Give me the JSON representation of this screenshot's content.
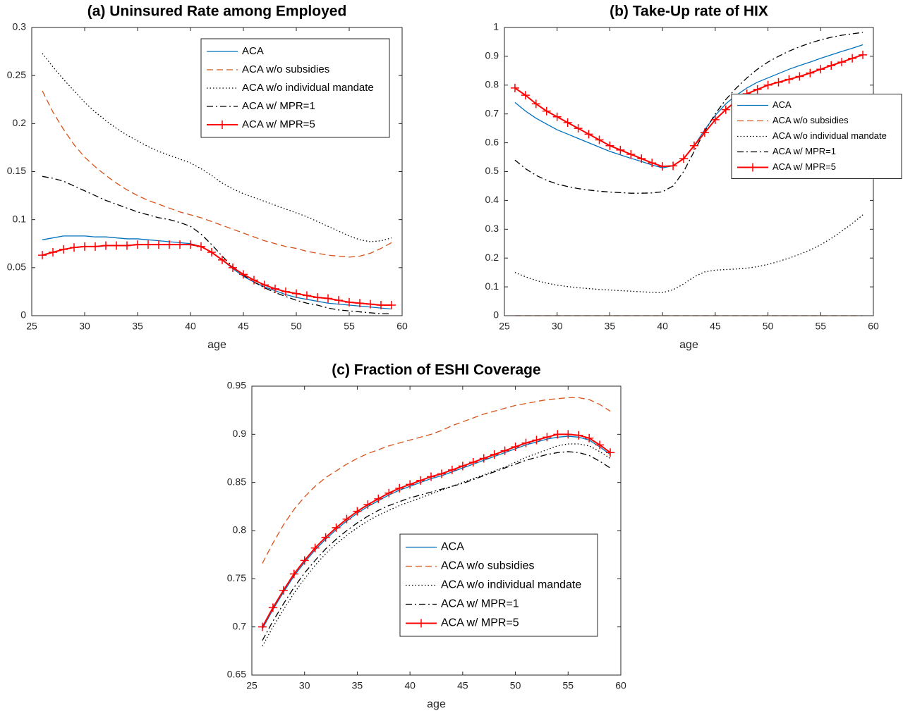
{
  "chart_data": [
    {
      "type": "line",
      "title": "(a) Uninsured Rate among Employed",
      "xlabel": "age",
      "legend": "northeast",
      "x": [
        26,
        27,
        28,
        29,
        30,
        31,
        32,
        33,
        34,
        35,
        36,
        37,
        38,
        39,
        40,
        41,
        42,
        43,
        44,
        45,
        46,
        47,
        48,
        49,
        50,
        51,
        52,
        53,
        54,
        55,
        56,
        57,
        58,
        59
      ],
      "xlim": [
        25,
        60
      ],
      "xticks": [
        25,
        30,
        35,
        40,
        45,
        50,
        55,
        60
      ],
      "ylim": [
        0,
        0.3
      ],
      "yticks": [
        0,
        0.05,
        0.1,
        0.15,
        0.2,
        0.25,
        0.3
      ],
      "series": [
        {
          "name": "ACA",
          "color": "#0072bd",
          "dash": "solid",
          "values": [
            0.079,
            0.081,
            0.083,
            0.083,
            0.083,
            0.082,
            0.082,
            0.081,
            0.08,
            0.08,
            0.079,
            0.078,
            0.077,
            0.076,
            0.075,
            0.072,
            0.066,
            0.058,
            0.049,
            0.041,
            0.035,
            0.03,
            0.026,
            0.022,
            0.019,
            0.017,
            0.015,
            0.013,
            0.012,
            0.011,
            0.01,
            0.009,
            0.008,
            0.007
          ]
        },
        {
          "name": "ACA w/o subsidies",
          "color": "#d95319",
          "dash": "dashed",
          "values": [
            0.234,
            0.212,
            0.194,
            0.178,
            0.165,
            0.155,
            0.146,
            0.138,
            0.131,
            0.125,
            0.12,
            0.116,
            0.112,
            0.108,
            0.105,
            0.102,
            0.098,
            0.094,
            0.09,
            0.086,
            0.082,
            0.078,
            0.075,
            0.072,
            0.07,
            0.067,
            0.065,
            0.063,
            0.062,
            0.061,
            0.062,
            0.065,
            0.07,
            0.076
          ]
        },
        {
          "name": "ACA w/o individual mandate",
          "color": "#000000",
          "dash": "dotted",
          "values": [
            0.273,
            0.259,
            0.246,
            0.234,
            0.222,
            0.212,
            0.203,
            0.195,
            0.188,
            0.182,
            0.176,
            0.171,
            0.167,
            0.163,
            0.159,
            0.153,
            0.146,
            0.138,
            0.132,
            0.127,
            0.123,
            0.119,
            0.115,
            0.111,
            0.107,
            0.103,
            0.098,
            0.093,
            0.088,
            0.083,
            0.079,
            0.077,
            0.078,
            0.081
          ]
        },
        {
          "name": "ACA w/ MPR=1",
          "color": "#000000",
          "dash": "dashdot",
          "values": [
            0.145,
            0.143,
            0.14,
            0.135,
            0.13,
            0.125,
            0.12,
            0.116,
            0.112,
            0.108,
            0.105,
            0.102,
            0.1,
            0.097,
            0.093,
            0.085,
            0.074,
            0.062,
            0.051,
            0.042,
            0.035,
            0.029,
            0.024,
            0.02,
            0.016,
            0.013,
            0.011,
            0.008,
            0.006,
            0.005,
            0.004,
            0.003,
            0.002,
            0.002
          ]
        },
        {
          "name": "ACA w/ MPR=5",
          "color": "#ff0000",
          "dash": "solid",
          "marker": "+",
          "values": [
            0.063,
            0.066,
            0.069,
            0.071,
            0.072,
            0.072,
            0.073,
            0.073,
            0.073,
            0.074,
            0.074,
            0.074,
            0.074,
            0.074,
            0.074,
            0.072,
            0.066,
            0.058,
            0.05,
            0.043,
            0.037,
            0.032,
            0.028,
            0.025,
            0.023,
            0.021,
            0.019,
            0.018,
            0.016,
            0.014,
            0.013,
            0.012,
            0.011,
            0.011
          ]
        }
      ]
    },
    {
      "type": "line",
      "title": "(b) Take-Up rate of HIX",
      "xlabel": "age",
      "legend": "east",
      "x": [
        26,
        27,
        28,
        29,
        30,
        31,
        32,
        33,
        34,
        35,
        36,
        37,
        38,
        39,
        40,
        41,
        42,
        43,
        44,
        45,
        46,
        47,
        48,
        49,
        50,
        51,
        52,
        53,
        54,
        55,
        56,
        57,
        58,
        59
      ],
      "xlim": [
        25,
        60
      ],
      "xticks": [
        25,
        30,
        35,
        40,
        45,
        50,
        55,
        60
      ],
      "ylim": [
        0,
        1
      ],
      "yticks": [
        0,
        0.1,
        0.2,
        0.3,
        0.4,
        0.5,
        0.6,
        0.7,
        0.8,
        0.9,
        1
      ],
      "series": [
        {
          "name": "ACA",
          "color": "#0072bd",
          "dash": "solid",
          "values": [
            0.74,
            0.71,
            0.685,
            0.665,
            0.645,
            0.63,
            0.615,
            0.6,
            0.585,
            0.57,
            0.558,
            0.546,
            0.535,
            0.523,
            0.513,
            0.52,
            0.545,
            0.59,
            0.645,
            0.695,
            0.735,
            0.765,
            0.79,
            0.81,
            0.825,
            0.84,
            0.855,
            0.868,
            0.88,
            0.893,
            0.905,
            0.917,
            0.928,
            0.94
          ]
        },
        {
          "name": "ACA w/o subsidies",
          "color": "#d95319",
          "dash": "dashed",
          "values": [
            0,
            0,
            0,
            0,
            0,
            0,
            0,
            0,
            0,
            0,
            0,
            0,
            0,
            0,
            0,
            0,
            0,
            0,
            0,
            0,
            0,
            0,
            0,
            0,
            0,
            0,
            0,
            0,
            0,
            0,
            0,
            0,
            0,
            0
          ]
        },
        {
          "name": "ACA w/o individual mandate",
          "color": "#000000",
          "dash": "dotted",
          "values": [
            0.15,
            0.135,
            0.122,
            0.113,
            0.106,
            0.101,
            0.097,
            0.094,
            0.091,
            0.089,
            0.087,
            0.085,
            0.083,
            0.081,
            0.08,
            0.09,
            0.11,
            0.135,
            0.152,
            0.158,
            0.16,
            0.162,
            0.165,
            0.17,
            0.178,
            0.188,
            0.2,
            0.213,
            0.228,
            0.246,
            0.268,
            0.293,
            0.32,
            0.35
          ]
        },
        {
          "name": "ACA w/ MPR=1",
          "color": "#000000",
          "dash": "dashdot",
          "values": [
            0.54,
            0.51,
            0.487,
            0.47,
            0.457,
            0.448,
            0.441,
            0.436,
            0.432,
            0.429,
            0.427,
            0.425,
            0.425,
            0.426,
            0.43,
            0.45,
            0.5,
            0.57,
            0.64,
            0.7,
            0.75,
            0.79,
            0.825,
            0.855,
            0.88,
            0.9,
            0.918,
            0.933,
            0.946,
            0.957,
            0.966,
            0.973,
            0.978,
            0.983
          ]
        },
        {
          "name": "ACA w/ MPR=5",
          "color": "#ff0000",
          "dash": "solid",
          "marker": "+",
          "values": [
            0.79,
            0.765,
            0.735,
            0.71,
            0.69,
            0.67,
            0.65,
            0.63,
            0.61,
            0.59,
            0.575,
            0.56,
            0.545,
            0.53,
            0.518,
            0.52,
            0.545,
            0.59,
            0.635,
            0.68,
            0.715,
            0.745,
            0.77,
            0.785,
            0.8,
            0.81,
            0.82,
            0.83,
            0.842,
            0.855,
            0.868,
            0.88,
            0.893,
            0.905
          ]
        }
      ]
    },
    {
      "type": "line",
      "title": "(c) Fraction of ESHI Coverage",
      "xlabel": "age",
      "legend": "southeast",
      "x": [
        26,
        27,
        28,
        29,
        30,
        31,
        32,
        33,
        34,
        35,
        36,
        37,
        38,
        39,
        40,
        41,
        42,
        43,
        44,
        45,
        46,
        47,
        48,
        49,
        50,
        51,
        52,
        53,
        54,
        55,
        56,
        57,
        58,
        59
      ],
      "xlim": [
        25,
        60
      ],
      "xticks": [
        25,
        30,
        35,
        40,
        45,
        50,
        55,
        60
      ],
      "ylim": [
        0.65,
        0.95
      ],
      "yticks": [
        0.65,
        0.7,
        0.75,
        0.8,
        0.85,
        0.9,
        0.95
      ],
      "series": [
        {
          "name": "ACA",
          "color": "#0072bd",
          "dash": "solid",
          "values": [
            0.698,
            0.718,
            0.736,
            0.753,
            0.767,
            0.78,
            0.791,
            0.801,
            0.81,
            0.818,
            0.825,
            0.831,
            0.837,
            0.842,
            0.846,
            0.85,
            0.854,
            0.857,
            0.861,
            0.865,
            0.869,
            0.873,
            0.877,
            0.881,
            0.885,
            0.889,
            0.892,
            0.895,
            0.897,
            0.898,
            0.897,
            0.894,
            0.887,
            0.879
          ]
        },
        {
          "name": "ACA w/o subsidies",
          "color": "#d95319",
          "dash": "dashed",
          "values": [
            0.766,
            0.787,
            0.806,
            0.822,
            0.835,
            0.846,
            0.855,
            0.862,
            0.869,
            0.875,
            0.88,
            0.884,
            0.888,
            0.891,
            0.894,
            0.897,
            0.9,
            0.904,
            0.909,
            0.913,
            0.917,
            0.921,
            0.924,
            0.927,
            0.93,
            0.932,
            0.934,
            0.936,
            0.937,
            0.938,
            0.938,
            0.936,
            0.931,
            0.924
          ]
        },
        {
          "name": "ACA w/o individual mandate",
          "color": "#000000",
          "dash": "dotted",
          "values": [
            0.68,
            0.7,
            0.718,
            0.735,
            0.75,
            0.764,
            0.776,
            0.786,
            0.795,
            0.803,
            0.81,
            0.816,
            0.821,
            0.826,
            0.83,
            0.834,
            0.838,
            0.842,
            0.846,
            0.85,
            0.854,
            0.858,
            0.862,
            0.866,
            0.871,
            0.876,
            0.88,
            0.884,
            0.888,
            0.89,
            0.89,
            0.888,
            0.882,
            0.875
          ]
        },
        {
          "name": "ACA w/ MPR=1",
          "color": "#000000",
          "dash": "dashdot",
          "values": [
            0.686,
            0.706,
            0.724,
            0.741,
            0.756,
            0.769,
            0.781,
            0.791,
            0.8,
            0.808,
            0.815,
            0.821,
            0.826,
            0.83,
            0.834,
            0.837,
            0.84,
            0.843,
            0.846,
            0.849,
            0.853,
            0.857,
            0.861,
            0.865,
            0.869,
            0.873,
            0.876,
            0.879,
            0.881,
            0.882,
            0.881,
            0.878,
            0.872,
            0.865
          ]
        },
        {
          "name": "ACA w/ MPR=5",
          "color": "#ff0000",
          "dash": "solid",
          "marker": "+",
          "values": [
            0.7,
            0.72,
            0.738,
            0.755,
            0.769,
            0.782,
            0.793,
            0.803,
            0.812,
            0.82,
            0.827,
            0.833,
            0.839,
            0.844,
            0.848,
            0.852,
            0.856,
            0.859,
            0.863,
            0.867,
            0.871,
            0.875,
            0.879,
            0.883,
            0.887,
            0.891,
            0.894,
            0.897,
            0.9,
            0.9,
            0.899,
            0.896,
            0.889,
            0.881
          ]
        }
      ]
    }
  ]
}
